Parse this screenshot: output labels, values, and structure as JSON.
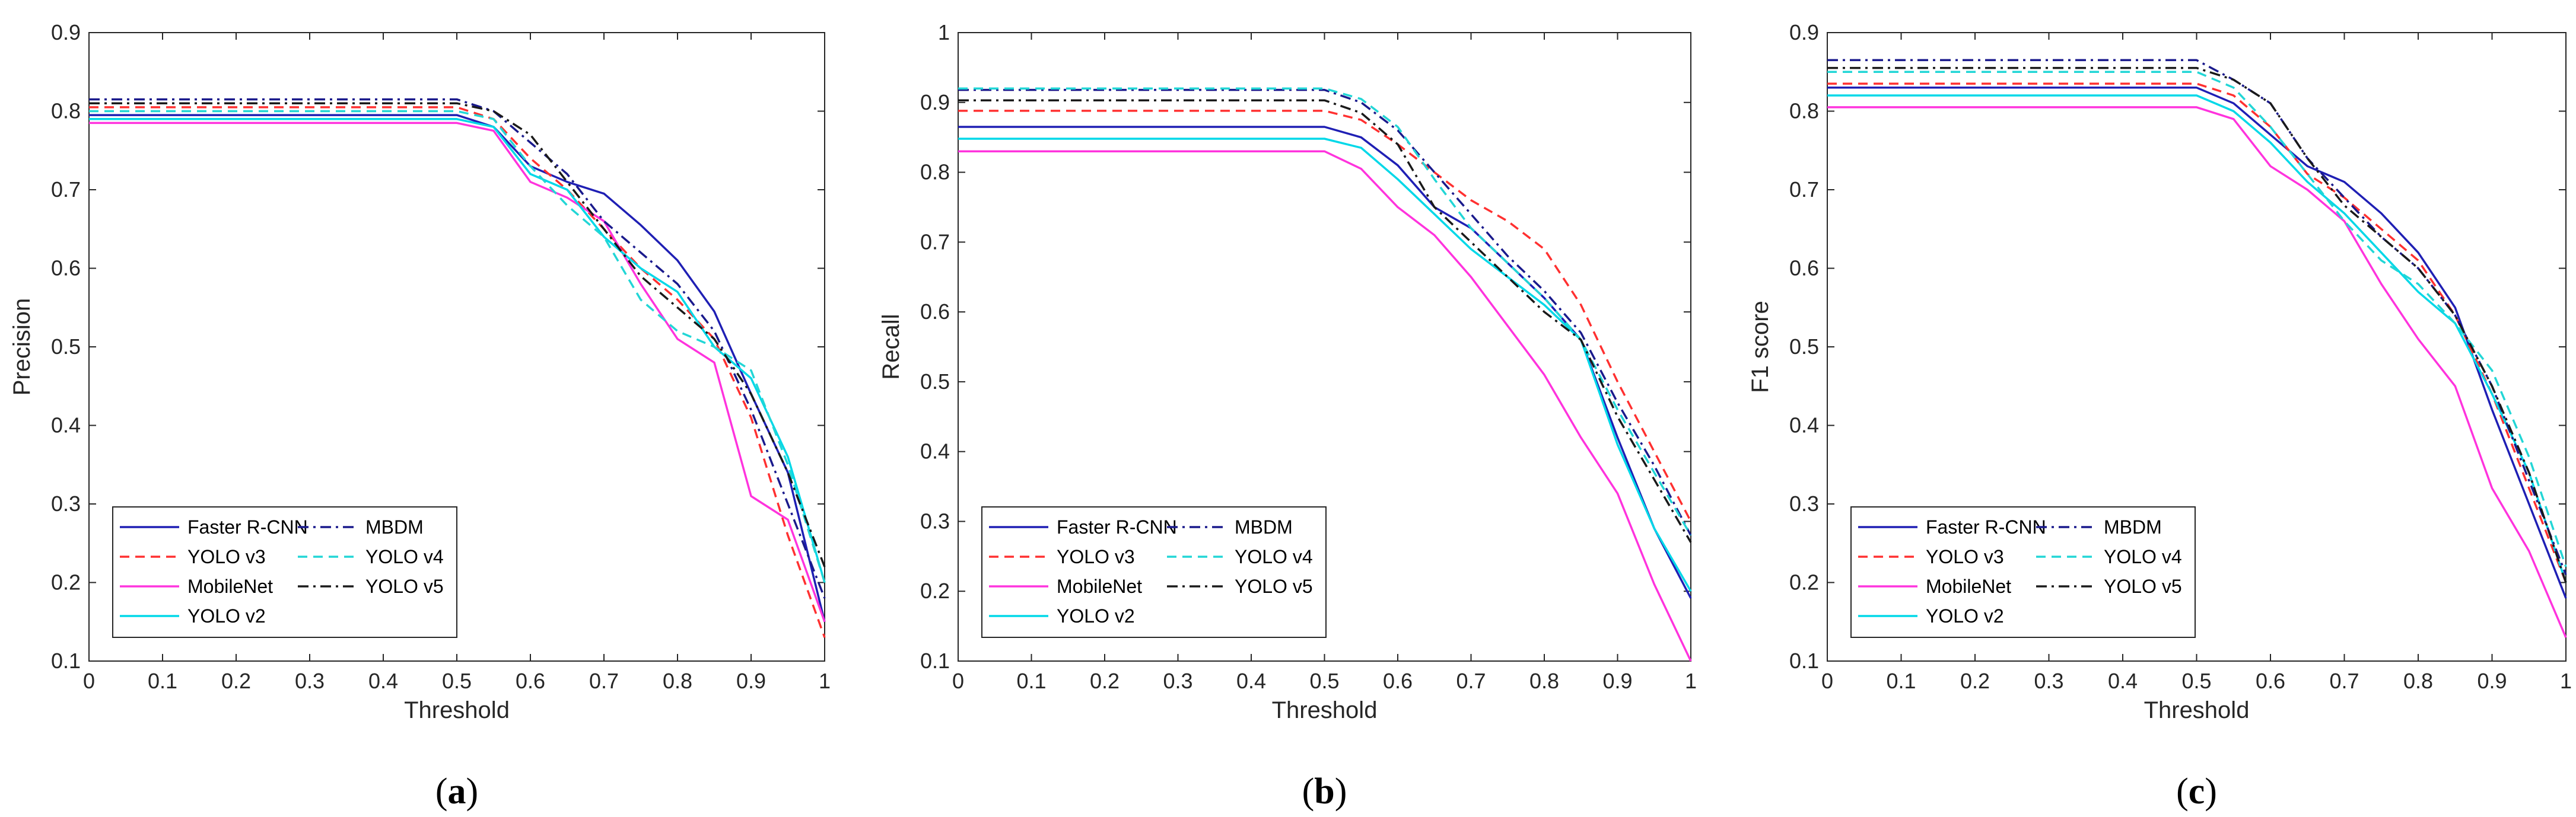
{
  "panels_caption_format": "({letter})",
  "colors": {
    "Faster R-CNN": "#1f1fb4",
    "YOLO v3": "#ff3030",
    "MobileNet": "#ff33dd",
    "YOLO v2": "#00d8e8",
    "MBDM": "#1a1a8c",
    "YOLO v4": "#22d6d6",
    "YOLO v5": "#1a1a1a"
  },
  "chart_data": [
    {
      "type": "line",
      "caption_letter": "a",
      "title": "",
      "xlabel": "Threshold",
      "ylabel": "Precision",
      "xlim": [
        0,
        1
      ],
      "ylim": [
        0.1,
        0.9
      ],
      "xticks": [
        "0",
        "0.1",
        "0.2",
        "0.3",
        "0.4",
        "0.5",
        "0.6",
        "0.7",
        "0.8",
        "0.9",
        "1"
      ],
      "yticks": [
        "0.1",
        "0.2",
        "0.3",
        "0.4",
        "0.5",
        "0.6",
        "0.7",
        "0.8",
        "0.9"
      ],
      "legend_position": "bottom-left",
      "x": [
        0,
        0.05,
        0.1,
        0.15,
        0.2,
        0.25,
        0.3,
        0.35,
        0.4,
        0.45,
        0.5,
        0.55,
        0.6,
        0.65,
        0.7,
        0.75,
        0.8,
        0.85,
        0.9,
        0.95,
        1.0
      ],
      "series": [
        {
          "name": "Faster R-CNN",
          "style": "solid",
          "values": [
            0.795,
            0.795,
            0.795,
            0.795,
            0.795,
            0.795,
            0.795,
            0.795,
            0.795,
            0.795,
            0.795,
            0.78,
            0.73,
            0.71,
            0.695,
            0.655,
            0.61,
            0.545,
            0.44,
            0.34,
            0.15
          ]
        },
        {
          "name": "YOLO v3",
          "style": "dashed",
          "values": [
            0.805,
            0.805,
            0.805,
            0.805,
            0.805,
            0.805,
            0.805,
            0.805,
            0.805,
            0.805,
            0.805,
            0.79,
            0.74,
            0.7,
            0.65,
            0.6,
            0.56,
            0.51,
            0.41,
            0.26,
            0.13
          ]
        },
        {
          "name": "MobileNet",
          "style": "solid",
          "values": [
            0.785,
            0.785,
            0.785,
            0.785,
            0.785,
            0.785,
            0.785,
            0.785,
            0.785,
            0.785,
            0.785,
            0.775,
            0.71,
            0.69,
            0.66,
            0.58,
            0.51,
            0.48,
            0.31,
            0.28,
            0.15
          ]
        },
        {
          "name": "YOLO v2",
          "style": "solid",
          "values": [
            0.79,
            0.79,
            0.79,
            0.79,
            0.79,
            0.79,
            0.79,
            0.79,
            0.79,
            0.79,
            0.79,
            0.78,
            0.72,
            0.7,
            0.64,
            0.6,
            0.57,
            0.5,
            0.46,
            0.36,
            0.2
          ]
        },
        {
          "name": "MBDM",
          "style": "dashdot",
          "values": [
            0.815,
            0.815,
            0.815,
            0.815,
            0.815,
            0.815,
            0.815,
            0.815,
            0.815,
            0.815,
            0.815,
            0.8,
            0.76,
            0.72,
            0.66,
            0.62,
            0.58,
            0.52,
            0.42,
            0.3,
            0.18
          ]
        },
        {
          "name": "YOLO v4",
          "style": "dashed",
          "values": [
            0.8,
            0.8,
            0.8,
            0.8,
            0.8,
            0.8,
            0.8,
            0.8,
            0.8,
            0.8,
            0.8,
            0.79,
            0.73,
            0.68,
            0.64,
            0.56,
            0.52,
            0.5,
            0.47,
            0.35,
            0.2
          ]
        },
        {
          "name": "YOLO v5",
          "style": "dashdot",
          "values": [
            0.81,
            0.81,
            0.81,
            0.81,
            0.81,
            0.81,
            0.81,
            0.81,
            0.81,
            0.81,
            0.81,
            0.8,
            0.77,
            0.71,
            0.65,
            0.59,
            0.55,
            0.51,
            0.44,
            0.34,
            0.22
          ]
        }
      ]
    },
    {
      "type": "line",
      "caption_letter": "b",
      "title": "",
      "xlabel": "Threshold",
      "ylabel": "Recall",
      "xlim": [
        0,
        1
      ],
      "ylim": [
        0.1,
        1.0
      ],
      "xticks": [
        "0",
        "0.1",
        "0.2",
        "0.3",
        "0.4",
        "0.5",
        "0.6",
        "0.7",
        "0.8",
        "0.9",
        "1"
      ],
      "yticks": [
        "0.1",
        "0.2",
        "0.3",
        "0.4",
        "0.5",
        "0.6",
        "0.7",
        "0.8",
        "0.9",
        "1"
      ],
      "legend_position": "bottom-left",
      "x": [
        0,
        0.05,
        0.1,
        0.15,
        0.2,
        0.25,
        0.3,
        0.35,
        0.4,
        0.45,
        0.5,
        0.55,
        0.6,
        0.65,
        0.7,
        0.75,
        0.8,
        0.85,
        0.9,
        0.95,
        1.0
      ],
      "series": [
        {
          "name": "Faster R-CNN",
          "style": "solid",
          "values": [
            0.865,
            0.865,
            0.865,
            0.865,
            0.865,
            0.865,
            0.865,
            0.865,
            0.865,
            0.865,
            0.865,
            0.85,
            0.81,
            0.75,
            0.72,
            0.67,
            0.62,
            0.56,
            0.42,
            0.29,
            0.19
          ]
        },
        {
          "name": "YOLO v3",
          "style": "dashed",
          "values": [
            0.888,
            0.888,
            0.888,
            0.888,
            0.888,
            0.888,
            0.888,
            0.888,
            0.888,
            0.888,
            0.888,
            0.875,
            0.84,
            0.8,
            0.76,
            0.73,
            0.69,
            0.61,
            0.5,
            0.4,
            0.3
          ]
        },
        {
          "name": "MobileNet",
          "style": "solid",
          "values": [
            0.83,
            0.83,
            0.83,
            0.83,
            0.83,
            0.83,
            0.83,
            0.83,
            0.83,
            0.83,
            0.83,
            0.805,
            0.75,
            0.71,
            0.65,
            0.58,
            0.51,
            0.42,
            0.34,
            0.21,
            0.1
          ]
        },
        {
          "name": "YOLO v2",
          "style": "solid",
          "values": [
            0.848,
            0.848,
            0.848,
            0.848,
            0.848,
            0.848,
            0.848,
            0.848,
            0.848,
            0.848,
            0.848,
            0.835,
            0.79,
            0.74,
            0.69,
            0.65,
            0.61,
            0.56,
            0.41,
            0.29,
            0.2
          ]
        },
        {
          "name": "MBDM",
          "style": "dashdot",
          "values": [
            0.918,
            0.918,
            0.918,
            0.918,
            0.918,
            0.918,
            0.918,
            0.918,
            0.918,
            0.918,
            0.918,
            0.9,
            0.86,
            0.8,
            0.74,
            0.68,
            0.63,
            0.57,
            0.47,
            0.38,
            0.28
          ]
        },
        {
          "name": "YOLO v4",
          "style": "dashed",
          "values": [
            0.92,
            0.92,
            0.92,
            0.92,
            0.92,
            0.92,
            0.92,
            0.92,
            0.92,
            0.92,
            0.92,
            0.905,
            0.865,
            0.79,
            0.72,
            0.67,
            0.62,
            0.56,
            0.46,
            0.37,
            0.28
          ]
        },
        {
          "name": "YOLO v5",
          "style": "dashdot",
          "values": [
            0.903,
            0.903,
            0.903,
            0.903,
            0.903,
            0.903,
            0.903,
            0.903,
            0.903,
            0.903,
            0.903,
            0.885,
            0.84,
            0.75,
            0.7,
            0.65,
            0.6,
            0.56,
            0.45,
            0.36,
            0.27
          ]
        }
      ]
    },
    {
      "type": "line",
      "caption_letter": "c",
      "title": "",
      "xlabel": "Threshold",
      "ylabel": "F1 score",
      "xlim": [
        0,
        1
      ],
      "ylim": [
        0.1,
        0.9
      ],
      "xticks": [
        "0",
        "0.1",
        "0.2",
        "0.3",
        "0.4",
        "0.5",
        "0.6",
        "0.7",
        "0.8",
        "0.9",
        "1"
      ],
      "yticks": [
        "0.1",
        "0.2",
        "0.3",
        "0.4",
        "0.5",
        "0.6",
        "0.7",
        "0.8",
        "0.9"
      ],
      "legend_position": "bottom-left",
      "x": [
        0,
        0.05,
        0.1,
        0.15,
        0.2,
        0.25,
        0.3,
        0.35,
        0.4,
        0.45,
        0.5,
        0.55,
        0.6,
        0.65,
        0.7,
        0.75,
        0.8,
        0.85,
        0.9,
        0.95,
        1.0
      ],
      "series": [
        {
          "name": "Faster R-CNN",
          "style": "solid",
          "values": [
            0.83,
            0.83,
            0.83,
            0.83,
            0.83,
            0.83,
            0.83,
            0.83,
            0.83,
            0.83,
            0.83,
            0.81,
            0.77,
            0.73,
            0.71,
            0.67,
            0.62,
            0.55,
            0.42,
            0.3,
            0.18
          ]
        },
        {
          "name": "YOLO v3",
          "style": "dashed",
          "values": [
            0.835,
            0.835,
            0.835,
            0.835,
            0.835,
            0.835,
            0.835,
            0.835,
            0.835,
            0.835,
            0.835,
            0.82,
            0.78,
            0.72,
            0.69,
            0.65,
            0.61,
            0.54,
            0.44,
            0.32,
            0.2
          ]
        },
        {
          "name": "MobileNet",
          "style": "solid",
          "values": [
            0.805,
            0.805,
            0.805,
            0.805,
            0.805,
            0.805,
            0.805,
            0.805,
            0.805,
            0.805,
            0.805,
            0.79,
            0.73,
            0.7,
            0.66,
            0.58,
            0.51,
            0.45,
            0.32,
            0.24,
            0.13
          ]
        },
        {
          "name": "YOLO v2",
          "style": "solid",
          "values": [
            0.82,
            0.82,
            0.82,
            0.82,
            0.82,
            0.82,
            0.82,
            0.82,
            0.82,
            0.82,
            0.82,
            0.8,
            0.76,
            0.71,
            0.67,
            0.62,
            0.57,
            0.53,
            0.44,
            0.34,
            0.2
          ]
        },
        {
          "name": "MBDM",
          "style": "dashdot",
          "values": [
            0.865,
            0.865,
            0.865,
            0.865,
            0.865,
            0.865,
            0.865,
            0.865,
            0.865,
            0.865,
            0.865,
            0.84,
            0.81,
            0.74,
            0.69,
            0.64,
            0.6,
            0.54,
            0.45,
            0.33,
            0.21
          ]
        },
        {
          "name": "YOLO v4",
          "style": "dashed",
          "values": [
            0.85,
            0.85,
            0.85,
            0.85,
            0.85,
            0.85,
            0.85,
            0.85,
            0.85,
            0.85,
            0.85,
            0.83,
            0.78,
            0.72,
            0.66,
            0.61,
            0.58,
            0.53,
            0.47,
            0.36,
            0.22
          ]
        },
        {
          "name": "YOLO v5",
          "style": "dashdot",
          "values": [
            0.855,
            0.855,
            0.855,
            0.855,
            0.855,
            0.855,
            0.855,
            0.855,
            0.855,
            0.855,
            0.855,
            0.84,
            0.81,
            0.74,
            0.68,
            0.64,
            0.6,
            0.54,
            0.45,
            0.34,
            0.2
          ]
        }
      ]
    }
  ]
}
